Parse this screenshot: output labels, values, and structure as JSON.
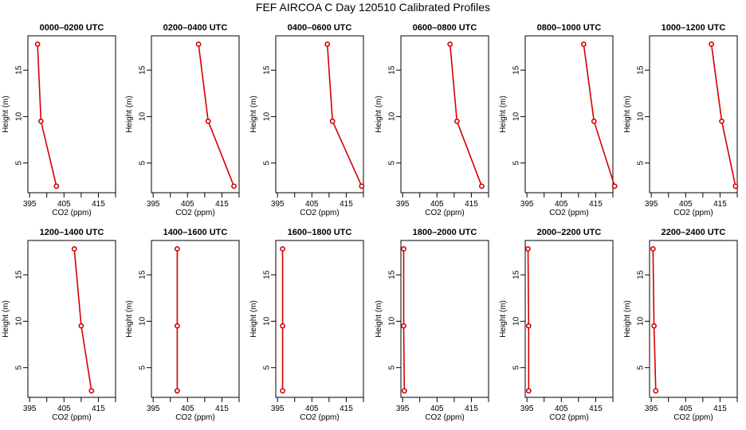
{
  "title": "FEF AIRCOA C  Day 120510  Calibrated Profiles",
  "colors": {
    "series": "#d40000",
    "axes": "#000000",
    "background": "#ffffff"
  },
  "chart_data": [
    {
      "type": "line",
      "title": "0000–0200 UTC",
      "xlabel": "CO2 (ppm)",
      "ylabel": "Height (m)",
      "xlim": [
        394.5,
        420
      ],
      "ylim": [
        1.8,
        18.7
      ],
      "xticks": [
        395,
        405,
        415
      ],
      "yticks": [
        5,
        10,
        15
      ],
      "x": [
        397.3,
        398.3,
        402.8
      ],
      "y": [
        17.8,
        9.5,
        2.5
      ]
    },
    {
      "type": "line",
      "title": "0200–0400 UTC",
      "xlabel": "CO2 (ppm)",
      "ylabel": "Height (m)",
      "xlim": [
        394.5,
        420
      ],
      "ylim": [
        1.8,
        18.7
      ],
      "xticks": [
        395,
        405,
        415
      ],
      "yticks": [
        5,
        10,
        15
      ],
      "x": [
        408.2,
        411.0,
        418.5
      ],
      "y": [
        17.8,
        9.5,
        2.5
      ]
    },
    {
      "type": "line",
      "title": "0400–0600 UTC",
      "xlabel": "CO2 (ppm)",
      "ylabel": "Height (m)",
      "xlim": [
        394.5,
        420
      ],
      "ylim": [
        1.8,
        18.7
      ],
      "xticks": [
        395,
        405,
        415
      ],
      "yticks": [
        5,
        10,
        15
      ],
      "x": [
        409.5,
        411.0,
        419.5
      ],
      "y": [
        17.8,
        9.5,
        2.5
      ]
    },
    {
      "type": "line",
      "title": "0600–0800 UTC",
      "xlabel": "CO2 (ppm)",
      "ylabel": "Height (m)",
      "xlim": [
        394.5,
        420
      ],
      "ylim": [
        1.8,
        18.7
      ],
      "xticks": [
        395,
        405,
        415
      ],
      "yticks": [
        5,
        10,
        15
      ],
      "x": [
        408.8,
        410.8,
        418.0
      ],
      "y": [
        17.8,
        9.5,
        2.5
      ]
    },
    {
      "type": "line",
      "title": "0800–1000 UTC",
      "xlabel": "CO2 (ppm)",
      "ylabel": "Height (m)",
      "xlim": [
        394.5,
        420
      ],
      "ylim": [
        1.8,
        18.7
      ],
      "xticks": [
        395,
        405,
        415
      ],
      "yticks": [
        5,
        10,
        15
      ],
      "x": [
        411.5,
        414.5,
        420.5
      ],
      "y": [
        17.8,
        9.5,
        2.5
      ]
    },
    {
      "type": "line",
      "title": "1000–1200 UTC",
      "xlabel": "CO2 (ppm)",
      "ylabel": "Height (m)",
      "xlim": [
        394.5,
        420
      ],
      "ylim": [
        1.8,
        18.7
      ],
      "xticks": [
        395,
        405,
        415
      ],
      "yticks": [
        5,
        10,
        15
      ],
      "x": [
        412.5,
        415.5,
        419.5
      ],
      "y": [
        17.8,
        9.5,
        2.5
      ]
    },
    {
      "type": "line",
      "title": "1200–1400 UTC",
      "xlabel": "CO2 (ppm)",
      "ylabel": "Height (m)",
      "xlim": [
        394.5,
        420
      ],
      "ylim": [
        1.8,
        18.7
      ],
      "xticks": [
        395,
        405,
        415
      ],
      "yticks": [
        5,
        10,
        15
      ],
      "x": [
        408.0,
        410.0,
        413.0
      ],
      "y": [
        17.8,
        9.5,
        2.5
      ]
    },
    {
      "type": "line",
      "title": "1400–1600 UTC",
      "xlabel": "CO2 (ppm)",
      "ylabel": "Height (m)",
      "xlim": [
        394.5,
        420
      ],
      "ylim": [
        1.8,
        18.7
      ],
      "xticks": [
        395,
        405,
        415
      ],
      "yticks": [
        5,
        10,
        15
      ],
      "x": [
        402.0,
        402.0,
        402.0
      ],
      "y": [
        17.8,
        9.5,
        2.5
      ]
    },
    {
      "type": "line",
      "title": "1600–1800 UTC",
      "xlabel": "CO2 (ppm)",
      "ylabel": "Height (m)",
      "xlim": [
        394.5,
        420
      ],
      "ylim": [
        1.8,
        18.7
      ],
      "xticks": [
        395,
        405,
        415
      ],
      "yticks": [
        5,
        10,
        15
      ],
      "x": [
        396.5,
        396.5,
        396.5
      ],
      "y": [
        17.8,
        9.5,
        2.5
      ]
    },
    {
      "type": "line",
      "title": "1800–2000 UTC",
      "xlabel": "CO2 (ppm)",
      "ylabel": "Height (m)",
      "xlim": [
        394.5,
        420
      ],
      "ylim": [
        1.8,
        18.7
      ],
      "xticks": [
        395,
        405,
        415
      ],
      "yticks": [
        5,
        10,
        15
      ],
      "x": [
        395.3,
        395.3,
        395.5
      ],
      "y": [
        17.8,
        9.5,
        2.5
      ]
    },
    {
      "type": "line",
      "title": "2000–2200 UTC",
      "xlabel": "CO2 (ppm)",
      "ylabel": "Height (m)",
      "xlim": [
        394.5,
        420
      ],
      "ylim": [
        1.8,
        18.7
      ],
      "xticks": [
        395,
        405,
        415
      ],
      "yticks": [
        5,
        10,
        15
      ],
      "x": [
        395.3,
        395.5,
        395.5
      ],
      "y": [
        17.8,
        9.5,
        2.5
      ]
    },
    {
      "type": "line",
      "title": "2200–2400 UTC",
      "xlabel": "CO2 (ppm)",
      "ylabel": "Height (m)",
      "xlim": [
        394.5,
        420
      ],
      "ylim": [
        1.8,
        18.7
      ],
      "xticks": [
        395,
        405,
        415
      ],
      "yticks": [
        5,
        10,
        15
      ],
      "x": [
        395.5,
        395.8,
        396.3
      ],
      "y": [
        17.8,
        9.5,
        2.5
      ]
    }
  ]
}
